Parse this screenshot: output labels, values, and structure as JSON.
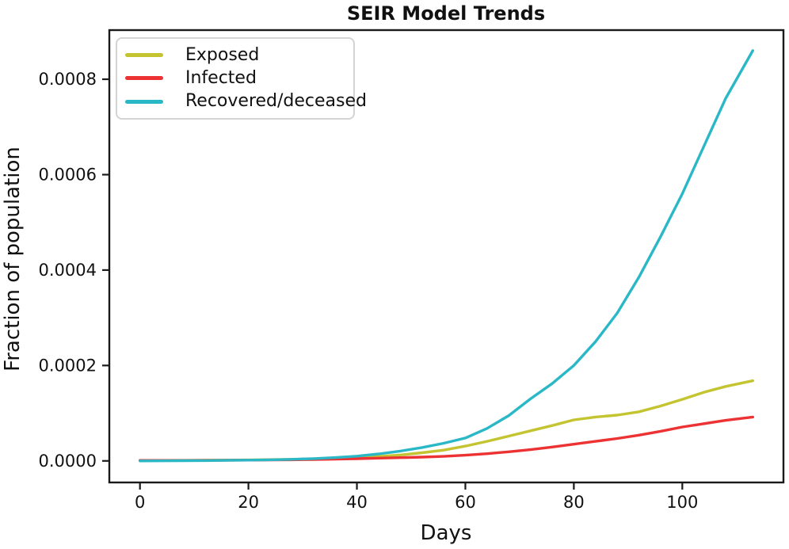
{
  "chart": {
    "title": "SEIR Model Trends",
    "xlabel": "Days",
    "ylabel": "Fraction of population"
  },
  "legend": {
    "position": "upper left",
    "items": [
      {
        "label": "Exposed",
        "color": "#c3c430"
      },
      {
        "label": "Infected",
        "color": "#ec3232"
      },
      {
        "label": "Recovered/deceased",
        "color": "#2bb8c6"
      }
    ]
  },
  "colors": {
    "exposed": "#c3c430",
    "infected": "#ec3232",
    "recovered": "#2bb8c6",
    "spine": "#1a1a1a",
    "text": "#111111"
  },
  "chart_data": {
    "type": "line",
    "title": "SEIR Model Trends",
    "xlabel": "Days",
    "ylabel": "Fraction of population",
    "grid": false,
    "legend_position": "upper left",
    "xlim": [
      -5.65,
      118.65
    ],
    "ylim": [
      -4.52e-05,
      0.000903
    ],
    "xticks": [
      0,
      20,
      40,
      60,
      80,
      100
    ],
    "ytick_values": [
      0.0,
      0.0002,
      0.0004,
      0.0006,
      0.0008
    ],
    "ytick_labels": [
      "0.0000",
      "0.0002",
      "0.0004",
      "0.0006",
      "0.0008"
    ],
    "x": [
      0,
      4,
      8,
      12,
      16,
      20,
      24,
      28,
      32,
      36,
      40,
      44,
      48,
      52,
      56,
      60,
      64,
      68,
      72,
      76,
      80,
      84,
      88,
      92,
      96,
      100,
      104,
      108,
      113
    ],
    "series": [
      {
        "name": "Exposed",
        "color": "#c3c430",
        "values": [
          1e-06,
          1e-06,
          1.1e-06,
          1.3e-06,
          1.6e-06,
          2e-06,
          2.6e-06,
          3.3e-06,
          4.2e-06,
          5.5e-06,
          7e-06,
          9.3e-06,
          1.25e-05,
          1.7e-05,
          2.25e-05,
          3.1e-05,
          4.1e-05,
          5.2e-05,
          6.3e-05,
          7.4e-05,
          8.6e-05,
          9.2e-05,
          9.6e-05,
          0.000103,
          0.000115,
          0.000129,
          0.000144,
          0.000156,
          0.000168
        ]
      },
      {
        "name": "Infected",
        "color": "#ec3232",
        "values": [
          1e-06,
          1e-06,
          1e-06,
          1.2e-06,
          1.4e-06,
          1.6e-06,
          1.9e-06,
          2.3e-06,
          2.9e-06,
          3.6e-06,
          4.6e-06,
          5.7e-06,
          6.8e-06,
          7.9e-06,
          9.4e-06,
          1.2e-05,
          1.5e-05,
          1.9e-05,
          2.35e-05,
          2.9e-05,
          3.5e-05,
          4.1e-05,
          4.7e-05,
          5.4e-05,
          6.2e-05,
          7.1e-05,
          7.8e-05,
          8.5e-05,
          9.2e-05
        ]
      },
      {
        "name": "Recovered/deceased",
        "color": "#2bb8c6",
        "values": [
          0,
          2e-07,
          4e-07,
          7e-07,
          1.1e-06,
          1.6e-06,
          2.3e-06,
          3.3e-06,
          4.8e-06,
          7e-06,
          1e-05,
          1.45e-05,
          2.05e-05,
          2.8e-05,
          3.7e-05,
          4.8e-05,
          6.8e-05,
          9.5e-05,
          0.00013,
          0.000162,
          0.0002,
          0.00025,
          0.00031,
          0.000385,
          0.00047,
          0.00056,
          0.00066,
          0.00076,
          0.00086
        ]
      }
    ]
  }
}
